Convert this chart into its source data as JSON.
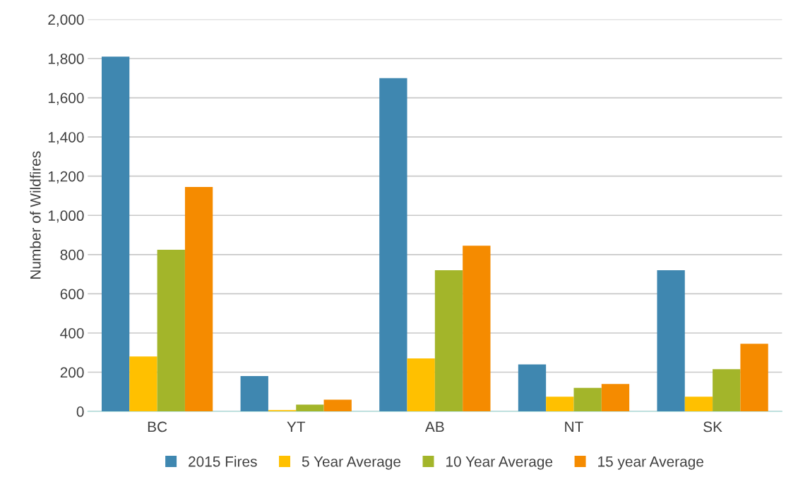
{
  "chart_data": {
    "type": "bar",
    "ylabel": "Number of Wildfires",
    "categories": [
      "BC",
      "YT",
      "AB",
      "NT",
      "SK"
    ],
    "series": [
      {
        "name": "2015 Fires",
        "color": "#3f87b0",
        "values": [
          1810,
          180,
          1700,
          240,
          720
        ]
      },
      {
        "name": "5 Year Average",
        "color": "#ffc000",
        "values": [
          280,
          7,
          270,
          75,
          75
        ]
      },
      {
        "name": "10 Year Average",
        "color": "#a3b52a",
        "values": [
          825,
          35,
          720,
          120,
          215
        ]
      },
      {
        "name": "15 year Average",
        "color": "#f58b00",
        "values": [
          1145,
          60,
          845,
          140,
          345
        ]
      }
    ],
    "ylim": [
      0,
      2000
    ],
    "yticks": [
      0,
      {
        "value": 200,
        "label": "200"
      },
      {
        "value": 400,
        "label": "400"
      },
      {
        "value": 600,
        "label": "600"
      },
      {
        "value": 800,
        "label": "800"
      },
      {
        "value": 1000,
        "label": "1,000"
      },
      {
        "value": 1200,
        "label": "1,200"
      },
      {
        "value": 1400,
        "label": "1,400"
      },
      {
        "value": 1600,
        "label": "1,600"
      },
      {
        "value": 1800,
        "label": "1,800"
      },
      {
        "value": 2000,
        "label": "2,000"
      }
    ],
    "grid": "y",
    "legend": "bottom"
  }
}
